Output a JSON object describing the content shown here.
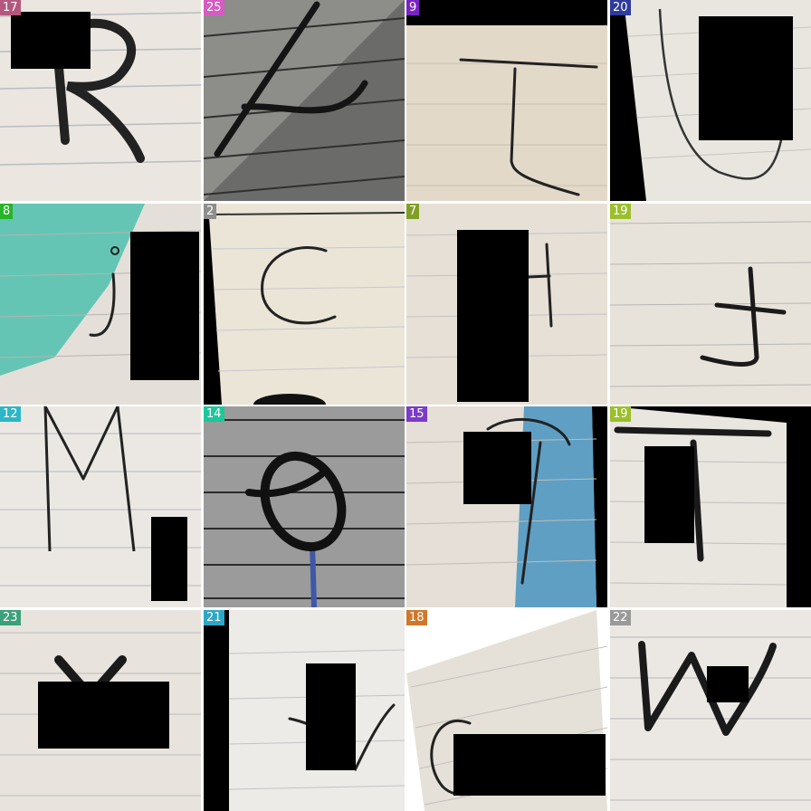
{
  "tiles": [
    {
      "label": "17",
      "tag_color": "#b5577b"
    },
    {
      "label": "25",
      "tag_color": "#d65bc2"
    },
    {
      "label": "9",
      "tag_color": "#7a22c7"
    },
    {
      "label": "20",
      "tag_color": "#2d3c9c"
    },
    {
      "label": "8",
      "tag_color": "#27b427"
    },
    {
      "label": "2",
      "tag_color": "#8e8e8e"
    },
    {
      "label": "7",
      "tag_color": "#7fa024"
    },
    {
      "label": "19",
      "tag_color": "#9bbf2b"
    },
    {
      "label": "12",
      "tag_color": "#2cb6c7"
    },
    {
      "label": "14",
      "tag_color": "#1ec79a"
    },
    {
      "label": "15",
      "tag_color": "#7a3bc8"
    },
    {
      "label": "19",
      "tag_color": "#9bbf2b"
    },
    {
      "label": "23",
      "tag_color": "#3aa17a"
    },
    {
      "label": "21",
      "tag_color": "#2da7c8"
    },
    {
      "label": "18",
      "tag_color": "#d2772a"
    },
    {
      "label": "22",
      "tag_color": "#9a9a9a"
    }
  ]
}
